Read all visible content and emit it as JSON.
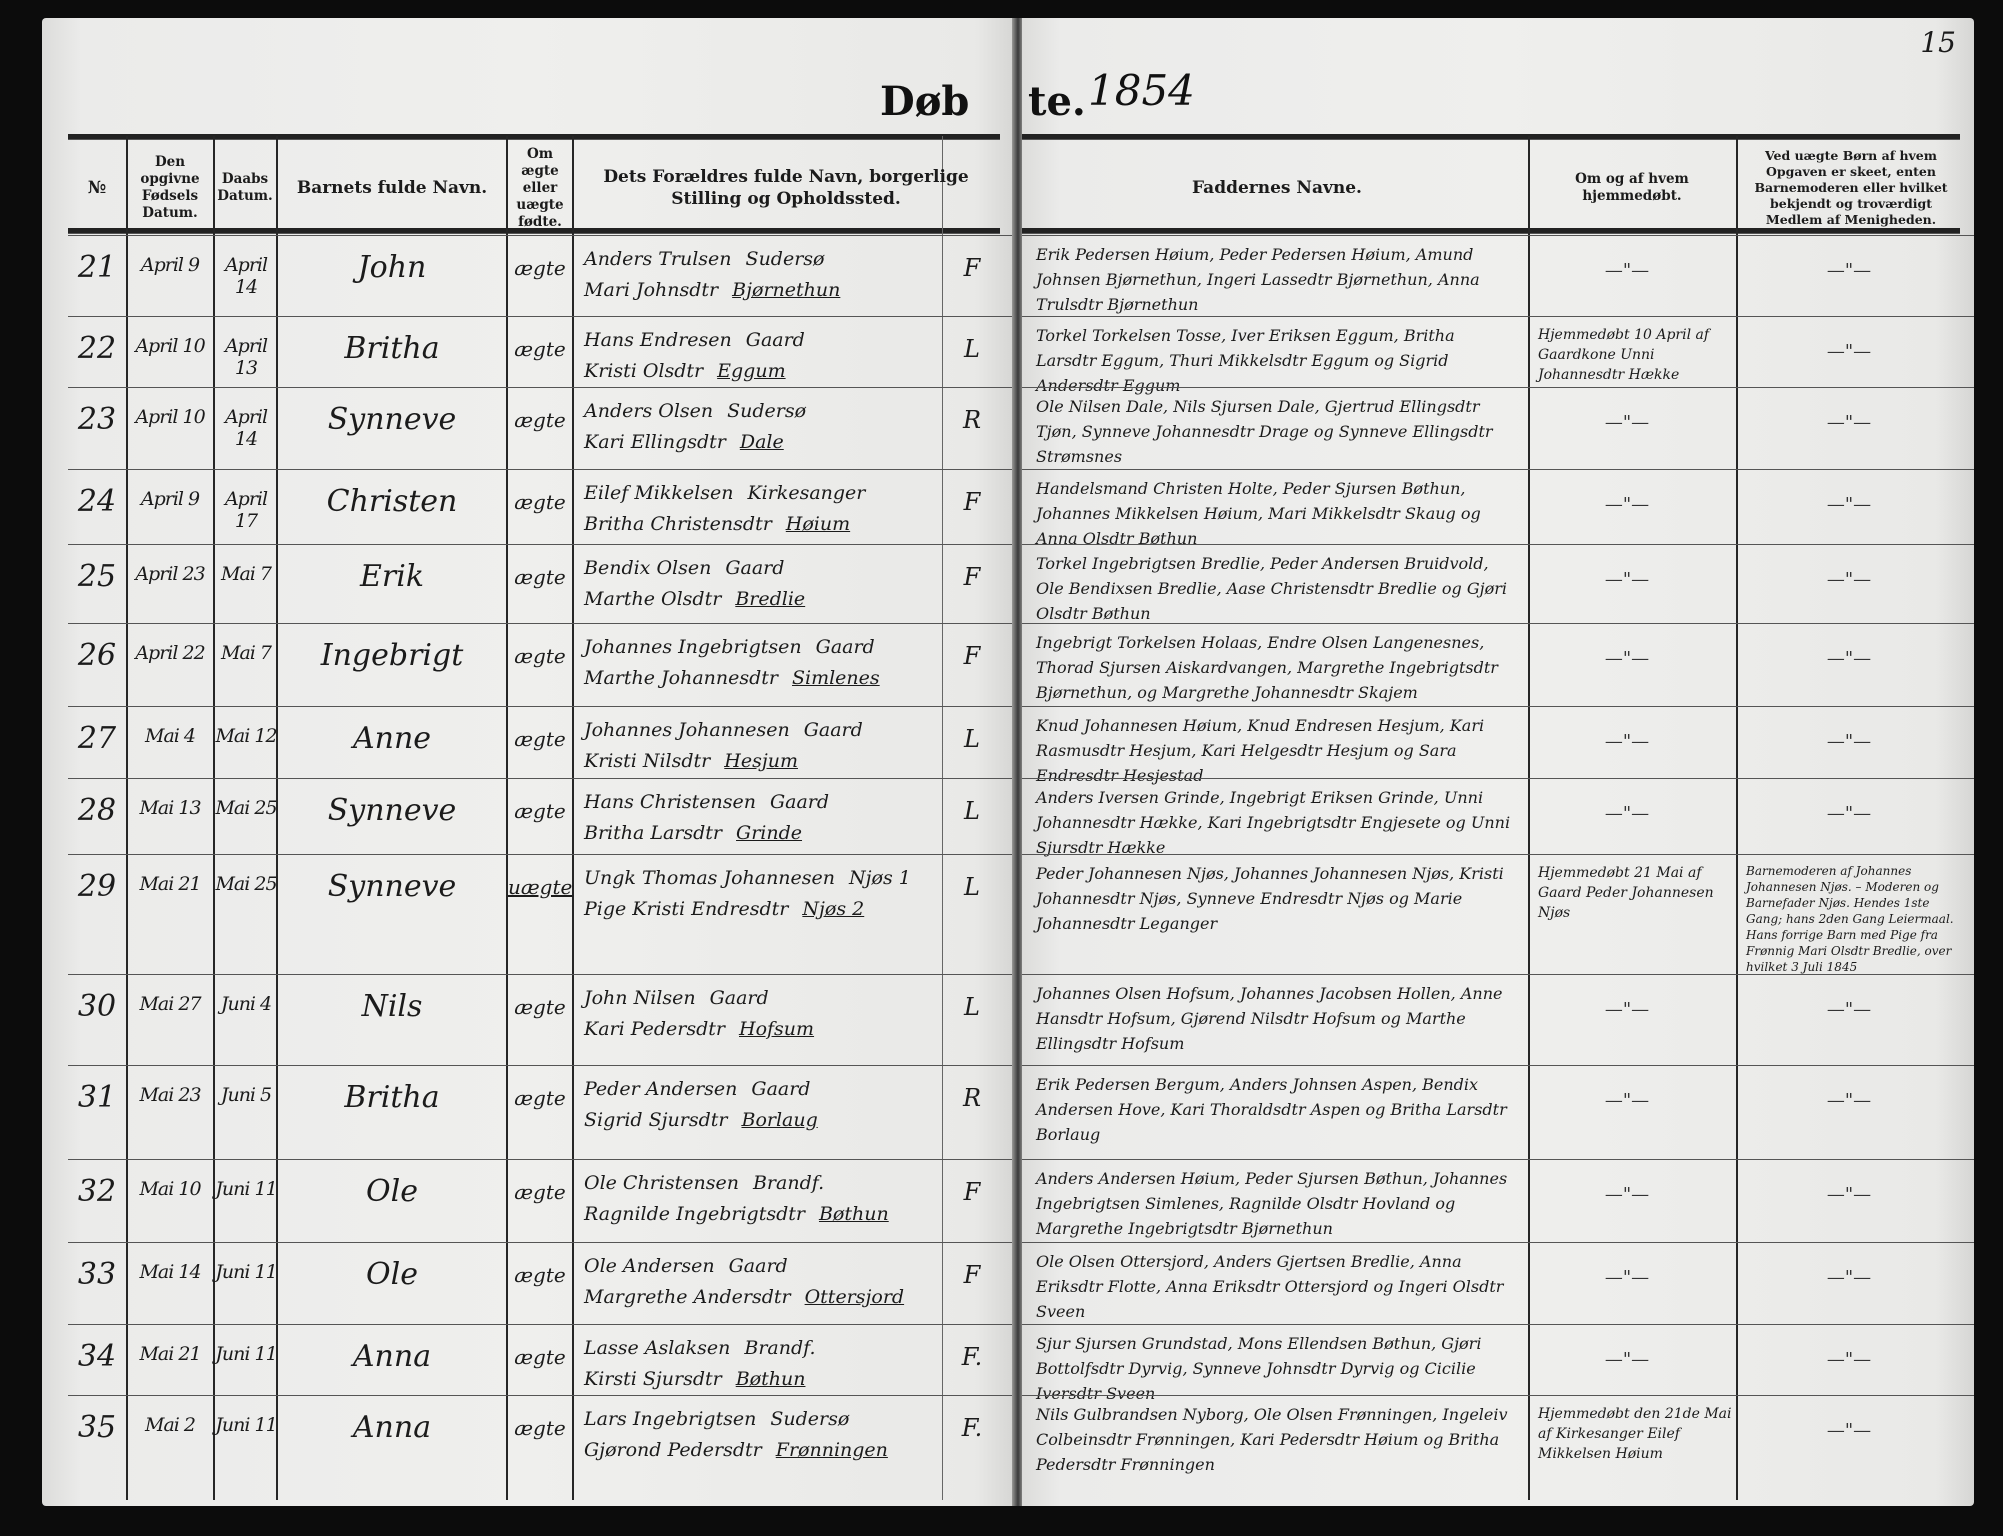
{
  "title": {
    "left_part": "Døb",
    "right_part": "te.",
    "year": "1854"
  },
  "page_number": "15",
  "headers": {
    "number": "№",
    "birth_date": "Den opgivne Fødsels Datum.",
    "baptism_date": "Daabs Datum.",
    "child_name": "Barnets fulde Navn.",
    "legitimacy": "Om ægte eller uægte fødte.",
    "parents": "Dets Forældres fulde Navn, borgerlige Stilling og Opholdssted.",
    "godparents": "Faddernes Navne.",
    "home_baptism": "Om og af hvem hjemmedøbt.",
    "illegitimate_informant": "Ved uægte Børn af hvem Opgaven er skeet, enten Barnemoderen eller hvilket bekjendt og troværdigt Medlem af Menigheden."
  },
  "rows": [
    {
      "no": "21",
      "born": "April 9",
      "baptized": "April 14",
      "child": "John",
      "legit": "ægte",
      "father": "Anders Trulsen",
      "occupation": "Sudersø",
      "mother": "Mari Johnsdtr",
      "residence": "Bjørnethun",
      "stilling": "F",
      "godparents": "Erik Pedersen Høium, Peder Pedersen Høium, Amund Johnsen Bjørnethun, Ingeri Lassedtr Bjørnethun, Anna Trulsdtr Bjørnethun",
      "home": "—\"—",
      "informant": "—\"—"
    },
    {
      "no": "22",
      "born": "April 10",
      "baptized": "April 13",
      "child": "Britha",
      "legit": "ægte",
      "father": "Hans Endresen",
      "occupation": "Gaard",
      "mother": "Kristi Olsdtr",
      "residence": "Eggum",
      "stilling": "L",
      "godparents": "Torkel Torkelsen Tosse, Iver Eriksen Eggum, Britha Larsdtr Eggum, Thuri Mikkelsdtr Eggum og Sigrid Andersdtr Eggum",
      "home": "Hjemmedøbt 10 April af Gaardkone Unni Johannesdtr Hække",
      "informant": "—\"—"
    },
    {
      "no": "23",
      "born": "April 10",
      "baptized": "April 14",
      "child": "Synneve",
      "legit": "ægte",
      "father": "Anders Olsen",
      "occupation": "Sudersø",
      "mother": "Kari Ellingsdtr",
      "residence": "Dale",
      "stilling": "R",
      "godparents": "Ole Nilsen Dale, Nils Sjursen Dale, Gjertrud Ellingsdtr Tjøn, Synneve Johannesdtr Drage og Synneve Ellingsdtr Strømsnes",
      "home": "—\"—",
      "informant": "—\"—"
    },
    {
      "no": "24",
      "born": "April 9",
      "baptized": "April 17",
      "child": "Christen",
      "legit": "ægte",
      "father": "Eilef Mikkelsen",
      "occupation": "Kirkesanger",
      "mother": "Britha Christensdtr",
      "residence": "Høium",
      "stilling": "F",
      "godparents": "Handelsmand Christen Holte, Peder Sjursen Bøthun, Johannes Mikkelsen Høium, Mari Mikkelsdtr Skaug og Anna Olsdtr Bøthun",
      "home": "—\"—",
      "informant": "—\"—"
    },
    {
      "no": "25",
      "born": "April 23",
      "baptized": "Mai 7",
      "child": "Erik",
      "legit": "ægte",
      "father": "Bendix Olsen",
      "occupation": "Gaard",
      "mother": "Marthe Olsdtr",
      "residence": "Bredlie",
      "stilling": "F",
      "godparents": "Torkel Ingebrigtsen Bredlie, Peder Andersen Bruidvold, Ole Bendixsen Bredlie, Aase Christensdtr Bredlie og Gjøri Olsdtr Bøthun",
      "home": "—\"—",
      "informant": "—\"—"
    },
    {
      "no": "26",
      "born": "April 22",
      "baptized": "Mai 7",
      "child": "Ingebrigt",
      "legit": "ægte",
      "father": "Johannes Ingebrigtsen",
      "occupation": "Gaard",
      "mother": "Marthe Johannesdtr",
      "residence": "Simlenes",
      "stilling": "F",
      "godparents": "Ingebrigt Torkelsen Holaas, Endre Olsen Langenesnes, Thorad Sjursen Aiskardvangen, Margrethe Ingebrigtsdtr Bjørnethun, og Margrethe Johannesdtr Skajem",
      "home": "—\"—",
      "informant": "—\"—"
    },
    {
      "no": "27",
      "born": "Mai 4",
      "baptized": "Mai 12",
      "child": "Anne",
      "legit": "ægte",
      "father": "Johannes Johannesen",
      "occupation": "Gaard",
      "mother": "Kristi Nilsdtr",
      "residence": "Hesjum",
      "stilling": "L",
      "godparents": "Knud Johannesen Høium, Knud Endresen Hesjum, Kari Rasmusdtr Hesjum, Kari Helgesdtr Hesjum og Sara Endresdtr Hesjestad",
      "home": "—\"—",
      "informant": "—\"—"
    },
    {
      "no": "28",
      "born": "Mai 13",
      "baptized": "Mai 25",
      "child": "Synneve",
      "legit": "ægte",
      "father": "Hans Christensen",
      "occupation": "Gaard",
      "mother": "Britha Larsdtr",
      "residence": "Grinde",
      "stilling": "L",
      "godparents": "Anders Iversen Grinde, Ingebrigt Eriksen Grinde, Unni Johannesdtr Hække, Kari Ingebrigtsdtr Engjesete og Unni Sjursdtr Hække",
      "home": "—\"—",
      "informant": "—\"—"
    },
    {
      "no": "29",
      "born": "Mai 21",
      "baptized": "Mai 25",
      "child": "Synneve",
      "legit": "uægte",
      "father": "Ungk Thomas Johannesen",
      "occupation": "Njøs 1",
      "mother": "Pige Kristi Endresdtr",
      "residence": "Njøs 2",
      "stilling": "L",
      "godparents": "Peder Johannesen Njøs, Johannes Johannesen Njøs, Kristi Johannesdtr Njøs, Synneve Endresdtr Njøs og Marie Johannesdtr Leganger",
      "home": "Hjemmedøbt 21 Mai af Gaard Peder Johannesen Njøs",
      "informant": "Barnemoderen af Johannes Johannesen Njøs. – Moderen og Barnefader Njøs. Hendes 1ste Gang; hans 2den Gang Leiermaal. Hans forrige Barn med Pige fra Frønnig Mari Olsdtr Bredlie, over hvilket 3 Juli 1845"
    },
    {
      "no": "30",
      "born": "Mai 27",
      "baptized": "Juni 4",
      "child": "Nils",
      "legit": "ægte",
      "father": "John Nilsen",
      "occupation": "Gaard",
      "mother": "Kari Pedersdtr",
      "residence": "Hofsum",
      "stilling": "L",
      "godparents": "Johannes Olsen Hofsum, Johannes Jacobsen Hollen, Anne Hansdtr Hofsum, Gjørend Nilsdtr Hofsum og Marthe Ellingsdtr Hofsum",
      "home": "—\"—",
      "informant": "—\"—"
    },
    {
      "no": "31",
      "born": "Mai 23",
      "baptized": "Juni 5",
      "child": "Britha",
      "legit": "ægte",
      "father": "Peder Andersen",
      "occupation": "Gaard",
      "mother": "Sigrid Sjursdtr",
      "residence": "Borlaug",
      "stilling": "R",
      "godparents": "Erik Pedersen Bergum, Anders Johnsen Aspen, Bendix Andersen Hove, Kari Thoraldsdtr Aspen og Britha Larsdtr Borlaug",
      "home": "—\"—",
      "informant": "—\"—"
    },
    {
      "no": "32",
      "born": "Mai 10",
      "baptized": "Juni 11",
      "child": "Ole",
      "legit": "ægte",
      "father": "Ole Christensen",
      "occupation": "Brandf.",
      "mother": "Ragnilde Ingebrigtsdtr",
      "residence": "Bøthun",
      "stilling": "F",
      "godparents": "Anders Andersen Høium, Peder Sjursen Bøthun, Johannes Ingebrigtsen Simlenes, Ragnilde Olsdtr Hovland og Margrethe Ingebrigtsdtr Bjørnethun",
      "home": "—\"—",
      "informant": "—\"—"
    },
    {
      "no": "33",
      "born": "Mai 14",
      "baptized": "Juni 11",
      "child": "Ole",
      "legit": "ægte",
      "father": "Ole Andersen",
      "occupation": "Gaard",
      "mother": "Margrethe Andersdtr",
      "residence": "Ottersjord",
      "stilling": "F",
      "godparents": "Ole Olsen Ottersjord, Anders Gjertsen Bredlie, Anna Eriksdtr Flotte, Anna Eriksdtr Ottersjord og Ingeri Olsdtr Sveen",
      "home": "—\"—",
      "informant": "—\"—"
    },
    {
      "no": "34",
      "born": "Mai 21",
      "baptized": "Juni 11",
      "child": "Anna",
      "legit": "ægte",
      "father": "Lasse Aslaksen",
      "occupation": "Brandf.",
      "mother": "Kirsti Sjursdtr",
      "residence": "Bøthun",
      "stilling": "F.",
      "godparents": "Sjur Sjursen Grundstad, Mons Ellendsen Bøthun, Gjøri Bottolfsdtr Dyrvig, Synneve Johnsdtr Dyrvig og Cicilie Iversdtr Sveen",
      "home": "—\"—",
      "informant": "—\"—"
    },
    {
      "no": "35",
      "born": "Mai 2",
      "baptized": "Juni 11",
      "child": "Anna",
      "legit": "ægte",
      "father": "Lars Ingebrigtsen",
      "occupation": "Sudersø",
      "mother": "Gjørond Pedersdtr",
      "residence": "Frønningen",
      "stilling": "F.",
      "godparents": "Nils Gulbrandsen Nyborg, Ole Olsen Frønningen, Ingeleiv Colbeinsdtr Frønningen, Kari Pedersdtr Høium og Britha Pedersdtr Frønningen",
      "home": "Hjemmedøbt den 21de Mai af Kirkesanger Eilef Mikkelsen Høium",
      "informant": "—\"—"
    }
  ]
}
